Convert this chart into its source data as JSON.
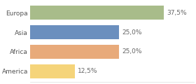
{
  "categories": [
    "Europa",
    "Asia",
    "Africa",
    "America"
  ],
  "values": [
    37.5,
    25.0,
    25.0,
    12.5
  ],
  "bar_colors": [
    "#a8bc8a",
    "#6b8fbe",
    "#e8aa7a",
    "#f5d47a"
  ],
  "labels": [
    "37,5%",
    "25,0%",
    "25,0%",
    "12,5%"
  ],
  "max_value": 37.5,
  "xlim_max": 46,
  "background_color": "#ffffff",
  "bar_height": 0.72,
  "label_fontsize": 6.5,
  "category_fontsize": 6.5,
  "figsize": [
    2.8,
    1.2
  ],
  "dpi": 100
}
